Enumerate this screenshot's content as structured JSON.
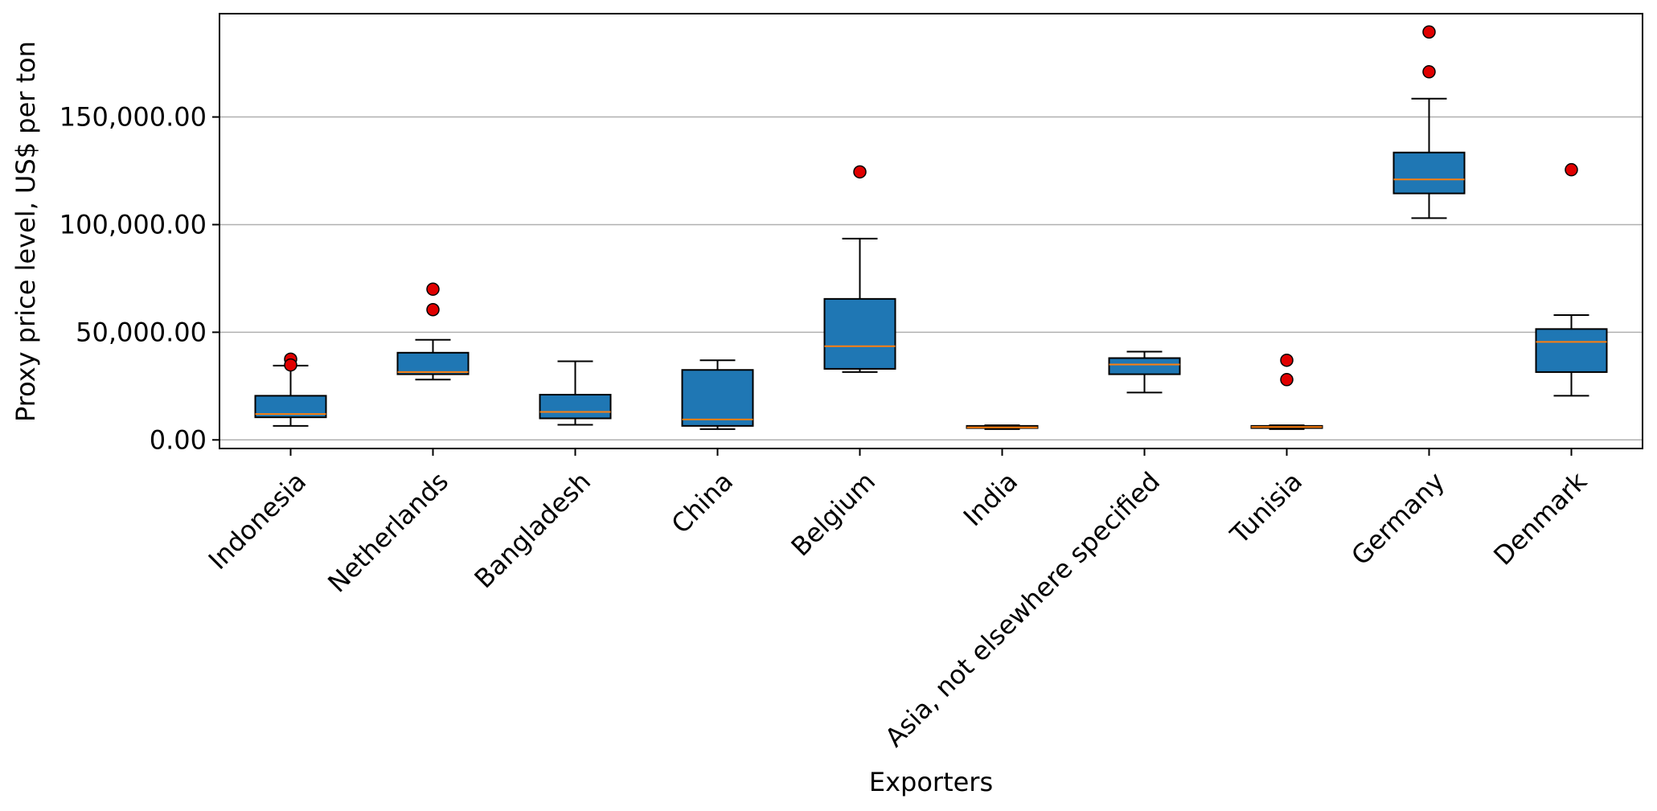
{
  "chart_data": {
    "type": "box",
    "title": "",
    "xlabel": "Exporters",
    "ylabel": "Proxy price level, US$ per ton",
    "ylim": [
      -4000,
      198000
    ],
    "yticks": [
      0,
      50000,
      100000,
      150000
    ],
    "ytick_labels": [
      "0.00",
      "50,000.00",
      "100,000.00",
      "150,000.00"
    ],
    "grid": "horizontal",
    "colors": {
      "box_fill": "#1f77b4",
      "median": "#ff7f0e",
      "outlier": "#e00000",
      "grid": "#b0b0b0"
    },
    "categories": [
      "Indonesia",
      "Netherlands",
      "Bangladesh",
      "China",
      "Belgium",
      "India",
      "Asia, not elsewhere specified",
      "Tunisia",
      "Germany",
      "Denmark"
    ],
    "boxes": [
      {
        "label": "Indonesia",
        "whisker_low": 6500,
        "q1": 10500,
        "median": 12000,
        "q3": 20500,
        "whisker_high": 34500,
        "outliers": [
          37500,
          34800
        ]
      },
      {
        "label": "Netherlands",
        "whisker_low": 28000,
        "q1": 30500,
        "median": 31500,
        "q3": 40500,
        "whisker_high": 46500,
        "outliers": [
          70000,
          60500
        ]
      },
      {
        "label": "Bangladesh",
        "whisker_low": 7000,
        "q1": 10000,
        "median": 13000,
        "q3": 21000,
        "whisker_high": 36500,
        "outliers": []
      },
      {
        "label": "China",
        "whisker_low": 5000,
        "q1": 6500,
        "median": 9500,
        "q3": 32500,
        "whisker_high": 37000,
        "outliers": []
      },
      {
        "label": "Belgium",
        "whisker_low": 31500,
        "q1": 33000,
        "median": 43500,
        "q3": 65500,
        "whisker_high": 93500,
        "outliers": [
          124500
        ]
      },
      {
        "label": "India",
        "whisker_low": 5000,
        "q1": 5500,
        "median": 5800,
        "q3": 6500,
        "whisker_high": 6800,
        "outliers": []
      },
      {
        "label": "Asia, not elsewhere specified",
        "whisker_low": 22000,
        "q1": 30500,
        "median": 35000,
        "q3": 38000,
        "whisker_high": 41000,
        "outliers": []
      },
      {
        "label": "Tunisia",
        "whisker_low": 5000,
        "q1": 5500,
        "median": 6000,
        "q3": 6500,
        "whisker_high": 6800,
        "outliers": [
          37000,
          28000
        ]
      },
      {
        "label": "Germany",
        "whisker_low": 103000,
        "q1": 114500,
        "median": 121000,
        "q3": 133500,
        "whisker_high": 158500,
        "outliers": [
          189500,
          171000
        ]
      },
      {
        "label": "Denmark",
        "whisker_low": 20500,
        "q1": 31500,
        "median": 45500,
        "q3": 51500,
        "whisker_high": 58000,
        "outliers": [
          125500
        ]
      }
    ]
  }
}
